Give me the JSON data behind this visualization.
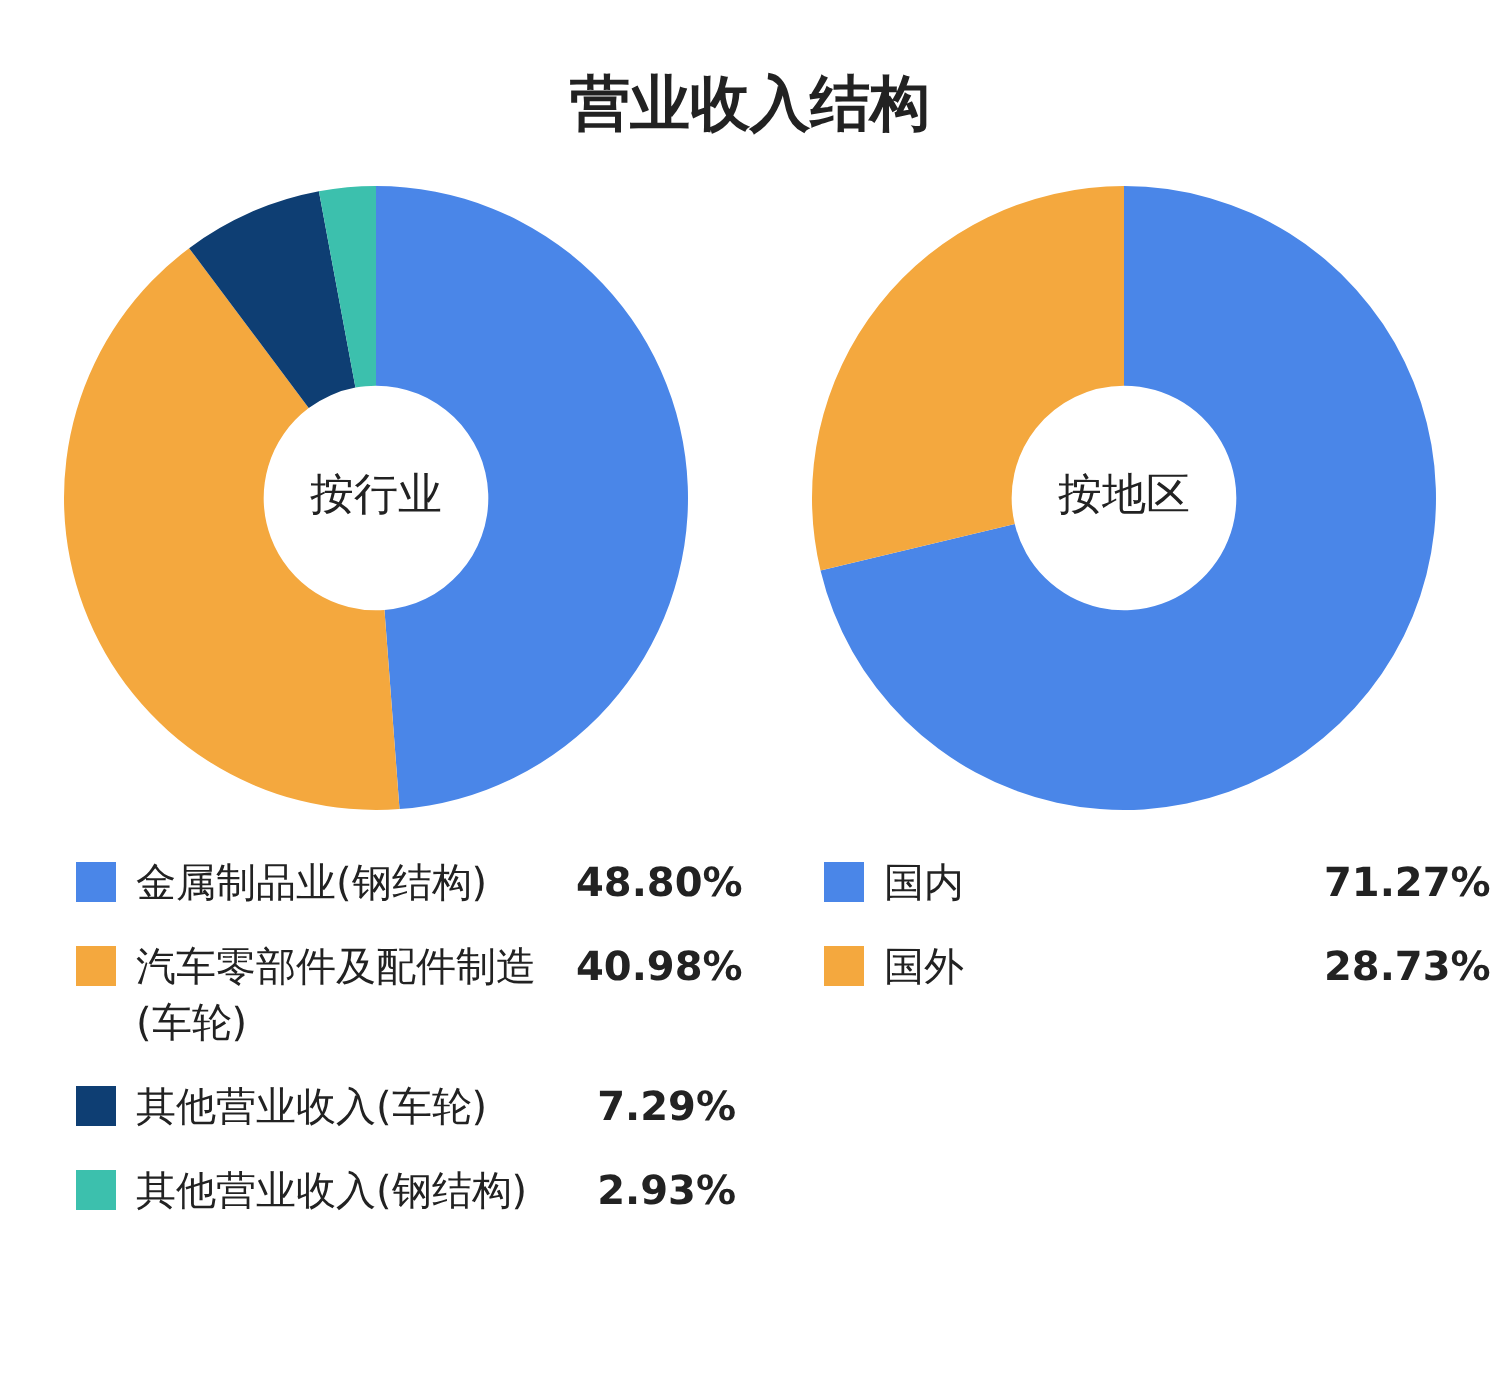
{
  "chart_data": [
    {
      "type": "donut",
      "title": "营业收入结构",
      "subtitle": "按行业",
      "categories": [
        "金属制品业(钢结构)",
        "汽车零部件及配件制造(车轮)",
        "其他营业收入(车轮)",
        "其他营业收入(钢结构)"
      ],
      "values": [
        48.8,
        40.98,
        7.29,
        2.93
      ],
      "value_labels": [
        "48.80%",
        "40.98%",
        "7.29%",
        "2.93%"
      ],
      "colors": [
        "#4a86e8",
        "#f4a83e",
        "#0e3e73",
        "#3cc0ad"
      ],
      "legend": "bottom"
    },
    {
      "type": "donut",
      "subtitle": "按地区",
      "categories": [
        "国内",
        "国外"
      ],
      "values": [
        71.27,
        28.73
      ],
      "value_labels": [
        "71.27%",
        "28.73%"
      ],
      "colors": [
        "#4a86e8",
        "#f4a83e"
      ],
      "legend": "bottom"
    }
  ]
}
